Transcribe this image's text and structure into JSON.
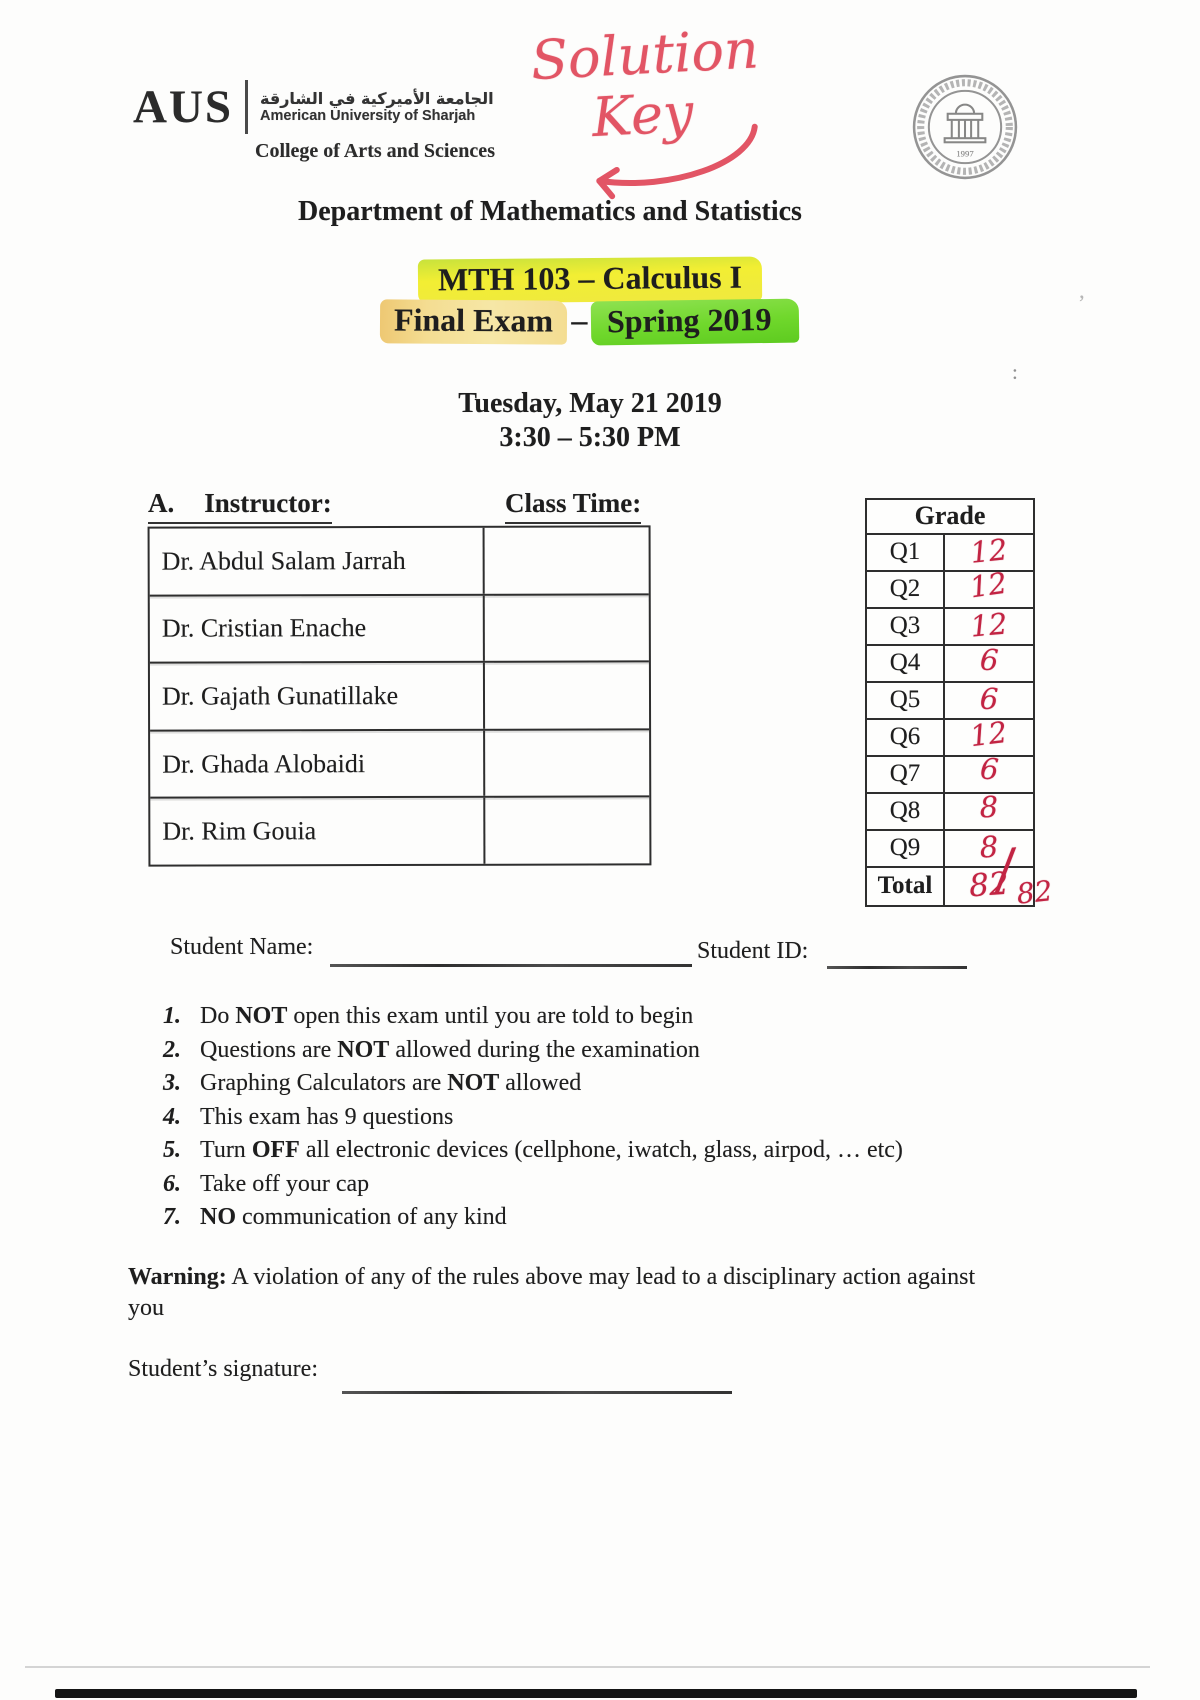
{
  "colors": {
    "ink": "#1e1e1e",
    "red_hand": "#c22443",
    "red_note": "#e25565",
    "hl_yellow": "#f2ee33",
    "hl_tan": "#f4dd92",
    "hl_green": "#70d82c"
  },
  "annotations": {
    "solution_word": "Solution",
    "key_word": "Key"
  },
  "header": {
    "logo_acronym": "AUS",
    "logo_arabic": "الجامعة الأميركية في الشارقة",
    "logo_university": "American University of Sharjah",
    "college": "College of Arts and Sciences",
    "seal_year": "1997",
    "department": "Department of Mathematics and Statistics"
  },
  "title": {
    "course": "MTH 103 – Calculus I",
    "exam": "Final Exam",
    "dash": "–",
    "term": "Spring 2019",
    "date": "Tuesday, May 21 2019",
    "time": "3:30 – 5:30 PM"
  },
  "instructor_section": {
    "letter": "A.",
    "instructor_label": "Instructor:",
    "class_time_label": "Class Time:",
    "instructors": [
      "Dr. Abdul Salam Jarrah",
      "Dr. Cristian Enache",
      "Dr. Gajath Gunatillake",
      "Dr. Ghada Alobaidi",
      "Dr. Rim Gouia"
    ]
  },
  "grade_table": {
    "header": "Grade",
    "rows": [
      [
        "Q1",
        "12"
      ],
      [
        "Q2",
        "12"
      ],
      [
        "Q3",
        "12"
      ],
      [
        "Q4",
        "6"
      ],
      [
        "Q5",
        "6"
      ],
      [
        "Q6",
        "12"
      ],
      [
        "Q7",
        "6"
      ],
      [
        "Q8",
        "8"
      ],
      [
        "Q9",
        "8"
      ]
    ],
    "total_label": "Total",
    "total_value": "82",
    "total_slash": "/",
    "total_out_of": "82"
  },
  "student": {
    "name_label": "Student Name:",
    "id_label": "Student ID:"
  },
  "instructions": [
    {
      "num": "1.",
      "segments": [
        {
          "t": "Do "
        },
        {
          "t": "NOT",
          "b": true
        },
        {
          "t": " open this exam until you are told to begin"
        }
      ]
    },
    {
      "num": "2.",
      "segments": [
        {
          "t": "Questions are "
        },
        {
          "t": "NOT",
          "b": true
        },
        {
          "t": " allowed during the examination"
        }
      ]
    },
    {
      "num": "3.",
      "segments": [
        {
          "t": "Graphing Calculators are "
        },
        {
          "t": "NOT",
          "b": true
        },
        {
          "t": " allowed"
        }
      ]
    },
    {
      "num": "4.",
      "segments": [
        {
          "t": "This exam has 9 questions"
        }
      ]
    },
    {
      "num": "5.",
      "segments": [
        {
          "t": "Turn "
        },
        {
          "t": "OFF",
          "b": true
        },
        {
          "t": " all electronic devices (cellphone, iwatch, glass, airpod, … etc)"
        }
      ]
    },
    {
      "num": "6.",
      "segments": [
        {
          "t": "Take off your cap"
        }
      ]
    },
    {
      "num": "7.",
      "segments": [
        {
          "t": "NO",
          "b": true
        },
        {
          "t": " communication of any kind"
        }
      ]
    }
  ],
  "warning": {
    "label": "Warning:",
    "text": " A violation of any of the rules above may lead to a disciplinary action against you"
  },
  "signature": {
    "label": "Student’s signature:"
  },
  "artifacts": {
    "colon": ":",
    "apostrophe": "’"
  }
}
